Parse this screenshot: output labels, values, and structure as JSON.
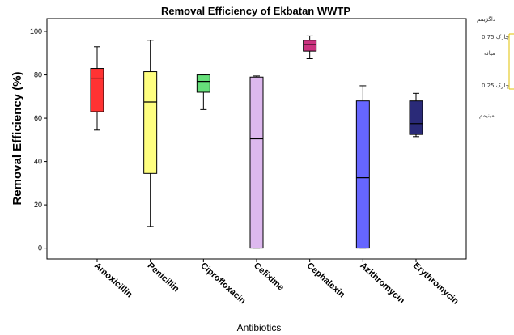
{
  "chart_data": {
    "type": "boxplot",
    "title": "Removal Efficiency of Ekbatan WWTP",
    "xlabel": "Antibiotics",
    "ylabel": "Removal Efficiency (%)",
    "ylim": [
      -5,
      106
    ],
    "yticks": [
      0,
      20,
      40,
      60,
      80,
      100
    ],
    "grid": false,
    "categories": [
      "Amoxicillin",
      "Penicillin",
      "Ciprofloxacin",
      "Cefixime",
      "Cephalexin",
      "Azithromycin",
      "Erythromycin"
    ],
    "boxes": [
      {
        "category": "Amoxicillin",
        "min": 54.5,
        "q1": 63,
        "median": 78.5,
        "q3": 83,
        "max": 93,
        "color": "#ff3333"
      },
      {
        "category": "Penicillin",
        "min": 10,
        "q1": 34.5,
        "median": 67.5,
        "q3": 81.5,
        "max": 96,
        "color": "#ffff80"
      },
      {
        "category": "Ciprofloxacin",
        "min": 64,
        "q1": 72,
        "median": 77,
        "q3": 80,
        "max": 80,
        "color": "#66e07a"
      },
      {
        "category": "Cefixime",
        "min": 0,
        "q1": 0,
        "median": 50.5,
        "q3": 79,
        "max": 79.5,
        "color": "#ddb8ee"
      },
      {
        "category": "Cephalexin",
        "min": 87.5,
        "q1": 91,
        "median": 94,
        "q3": 96,
        "max": 98,
        "color": "#cc3380"
      },
      {
        "category": "Azithromycin",
        "min": 0,
        "q1": 0,
        "median": 32.5,
        "q3": 68,
        "max": 75,
        "color": "#6666ff"
      },
      {
        "category": "Erythromycin",
        "min": 51.5,
        "q1": 52.5,
        "median": 57.5,
        "q3": 68,
        "max": 71.5,
        "color": "#2a2a78"
      }
    ],
    "legend": {
      "placement": "right",
      "entries": [
        "داگزیمم",
        "چارک 0.75",
        "میانه",
        "چارک 0.25",
        "مینیمم"
      ]
    }
  }
}
